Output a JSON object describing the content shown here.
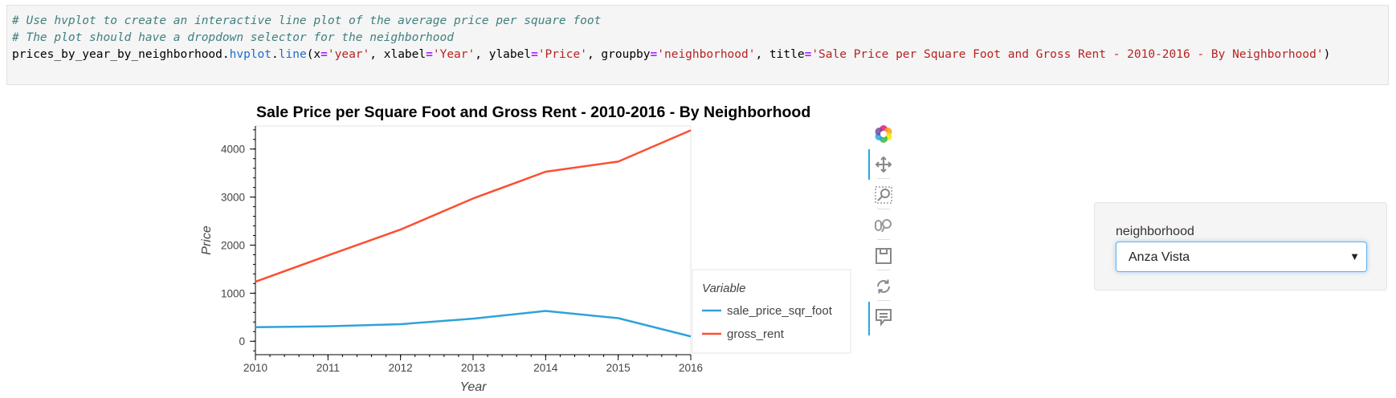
{
  "code": {
    "comment1": "# Use hvplot to create an interactive line plot of the average price per square foot",
    "comment2": "# The plot should have a dropdown selector for the neighborhood",
    "line3": {
      "obj": "prices_by_year_by_neighborhood",
      "dot1": ".",
      "attr1": "hvplot",
      "dot2": ".",
      "attr2": "line",
      "p1": "(x",
      "eq": "=",
      "s1": "'year'",
      "p2": ", xlabel",
      "s2": "'Year'",
      "p3": ", ylabel",
      "s3": "'Price'",
      "p4": ", groupby",
      "s4": "'neighborhood'",
      "p5": ", title",
      "s5": "'Sale Price per Square Foot and Gross Rent - 2010-2016 - By Neighborhood'",
      "p6": ")"
    }
  },
  "chart_data": {
    "type": "line",
    "title": "Sale Price per Square Foot and Gross Rent - 2010-2016 - By Neighborhood",
    "xlabel": "Year",
    "ylabel": "Price",
    "x": [
      2010,
      2011,
      2012,
      2013,
      2014,
      2015,
      2016
    ],
    "x_ticks": [
      "2010",
      "2011",
      "2012",
      "2013",
      "2014",
      "2015",
      "2016"
    ],
    "y_ticks": [
      "0",
      "1000",
      "2000",
      "3000",
      "4000"
    ],
    "ylim": [
      -280,
      4480
    ],
    "xlim": [
      2010,
      2016
    ],
    "legend_title": "Variable",
    "legend_position": "bottom-right",
    "grid": false,
    "series": [
      {
        "name": "sale_price_sqr_foot",
        "color": "#30a2da",
        "values": [
          291,
          310,
          355,
          470,
          630,
          480,
          100
        ]
      },
      {
        "name": "gross_rent",
        "color": "#fc4f30",
        "values": [
          1239,
          1785,
          2324,
          2971,
          3528,
          3739,
          4390
        ]
      }
    ]
  },
  "toolbar": {
    "tools": [
      "bokeh-logo-icon",
      "pan-icon",
      "box-zoom-icon",
      "wheel-zoom-icon",
      "save-icon",
      "reset-icon",
      "hover-icon"
    ]
  },
  "widget": {
    "label": "neighborhood",
    "selected": "Anza Vista",
    "caret": "▼"
  }
}
